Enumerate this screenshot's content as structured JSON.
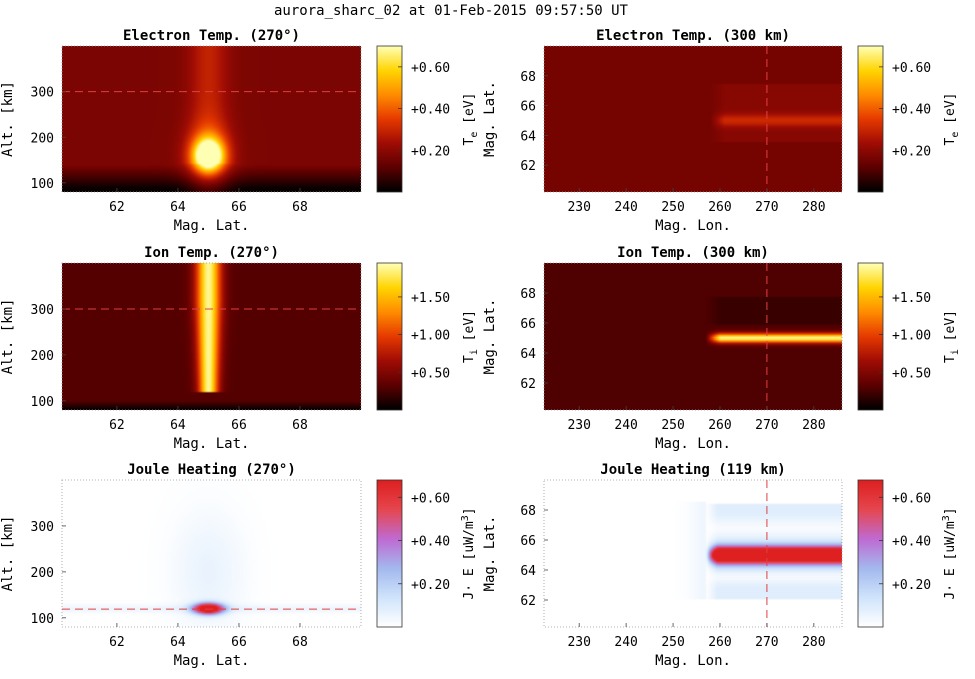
{
  "figure_title": "aurora_sharc_02 at 01-Feb-2015 09:57:50 UT",
  "colors": {
    "hot_map": [
      "#000000",
      "#5c0000",
      "#a00c04",
      "#e63a00",
      "#ff8c00",
      "#ffd400",
      "#ffffb4"
    ],
    "joule_map": [
      "#ffffff",
      "#cfe4fb",
      "#a3b8ee",
      "#c06ad2",
      "#e5474f",
      "#de2020"
    ],
    "marker_line": "#e04040"
  },
  "chart_data": [
    {
      "type": "heatmap",
      "title": "Electron Temp. (270°)",
      "xlabel": "Mag. Lat.",
      "ylabel": "Alt. [km]",
      "xlim": [
        60.2,
        70.0
      ],
      "ylim": [
        80,
        400
      ],
      "xticks": [
        "62",
        "64",
        "66",
        "68"
      ],
      "yticks": [
        "100",
        "200",
        "300"
      ],
      "colorbar": {
        "label": "T",
        "label_sub": "e",
        "label_unit": " [eV]",
        "range": [
          0.0,
          0.7
        ],
        "ticks": [
          "+0.20",
          "+0.40",
          "+0.60"
        ]
      },
      "marker": {
        "orientation": "horizontal",
        "value": 300
      },
      "colormap": "hot",
      "field": {
        "kind": "electron_alt",
        "peak_lat": 65.0,
        "peak_alt": 160,
        "peak_value": 0.7,
        "background_value": 0.17
      }
    },
    {
      "type": "heatmap",
      "title": "Electron Temp. (300 km)",
      "xlabel": "Mag. Lon.",
      "ylabel": "Mag. Lat.",
      "xlim": [
        222.5,
        286.0
      ],
      "ylim": [
        60.2,
        70.0
      ],
      "xticks": [
        "230",
        "240",
        "250",
        "260",
        "270",
        "280"
      ],
      "yticks": [
        "62",
        "64",
        "66",
        "68"
      ],
      "colorbar": {
        "label": "T",
        "label_sub": "e",
        "label_unit": " [eV]",
        "range": [
          0.0,
          0.7
        ],
        "ticks": [
          "+0.20",
          "+0.40",
          "+0.60"
        ]
      },
      "marker": {
        "orientation": "vertical",
        "value": 270
      },
      "colormap": "hot",
      "field": {
        "kind": "electron_map",
        "lon_start": 258,
        "band_lat": 65.0,
        "band_value": 0.28,
        "background_value": 0.16
      }
    },
    {
      "type": "heatmap",
      "title": "Ion Temp. (270°)",
      "xlabel": "Mag. Lat.",
      "ylabel": "Alt. [km]",
      "xlim": [
        60.2,
        70.0
      ],
      "ylim": [
        80,
        400
      ],
      "xticks": [
        "62",
        "64",
        "66",
        "68"
      ],
      "yticks": [
        "100",
        "200",
        "300"
      ],
      "colorbar": {
        "label": "T",
        "label_sub": "i",
        "label_unit": " [eV]",
        "range": [
          0.0,
          1.95
        ],
        "ticks": [
          "+0.50",
          "+1.00",
          "+1.50"
        ]
      },
      "marker": {
        "orientation": "horizontal",
        "value": 300
      },
      "colormap": "hot",
      "field": {
        "kind": "ion_alt",
        "peak_lat": 65.0,
        "peak_value": 1.9,
        "background_value": 0.3
      }
    },
    {
      "type": "heatmap",
      "title": "Ion Temp. (300 km)",
      "xlabel": "Mag. Lon.",
      "ylabel": "Mag. Lat.",
      "xlim": [
        222.5,
        286.0
      ],
      "ylim": [
        60.2,
        70.0
      ],
      "xticks": [
        "230",
        "240",
        "250",
        "260",
        "270",
        "280"
      ],
      "yticks": [
        "62",
        "64",
        "66",
        "68"
      ],
      "colorbar": {
        "label": "T",
        "label_sub": "i",
        "label_unit": " [eV]",
        "range": [
          0.0,
          1.95
        ],
        "ticks": [
          "+0.50",
          "+1.00",
          "+1.50"
        ]
      },
      "marker": {
        "orientation": "vertical",
        "value": 270
      },
      "colormap": "hot",
      "field": {
        "kind": "ion_map",
        "lon_start": 258,
        "band_lat": 65.0,
        "band_value": 1.9,
        "background_value": 0.28
      }
    },
    {
      "type": "heatmap",
      "title": "Joule Heating (270°)",
      "xlabel": "Mag. Lat.",
      "ylabel": "Alt. [km]",
      "xlim": [
        60.2,
        70.0
      ],
      "ylim": [
        80,
        400
      ],
      "xticks": [
        "62",
        "64",
        "66",
        "68"
      ],
      "yticks": [
        "100",
        "200",
        "300"
      ],
      "colorbar": {
        "label": "J· E [uW/m",
        "label_sup": "3",
        "label_unit": "]",
        "range": [
          0.0,
          0.68
        ],
        "ticks": [
          "+0.20",
          "+0.40",
          "+0.60"
        ]
      },
      "marker": {
        "orientation": "horizontal",
        "value": 119
      },
      "colormap": "joule",
      "field": {
        "kind": "joule_alt",
        "peak_lat": 65.0,
        "peak_alt": 120,
        "peak_value": 0.68
      }
    },
    {
      "type": "heatmap",
      "title": "Joule Heating (119 km)",
      "xlabel": "Mag. Lon.",
      "ylabel": "Mag. Lat.",
      "xlim": [
        222.5,
        286.0
      ],
      "ylim": [
        60.2,
        70.0
      ],
      "xticks": [
        "230",
        "240",
        "250",
        "260",
        "270",
        "280"
      ],
      "yticks": [
        "62",
        "64",
        "66",
        "68"
      ],
      "colorbar": {
        "label": "J· E [uW/m",
        "label_sup": "3",
        "label_unit": "]",
        "range": [
          0.0,
          0.68
        ],
        "ticks": [
          "+0.20",
          "+0.40",
          "+0.60"
        ]
      },
      "marker": {
        "orientation": "vertical",
        "value": 270
      },
      "colormap": "joule",
      "field": {
        "kind": "joule_map",
        "lon_start": 258,
        "band_lat": 65.0,
        "band_value": 0.68
      }
    }
  ]
}
